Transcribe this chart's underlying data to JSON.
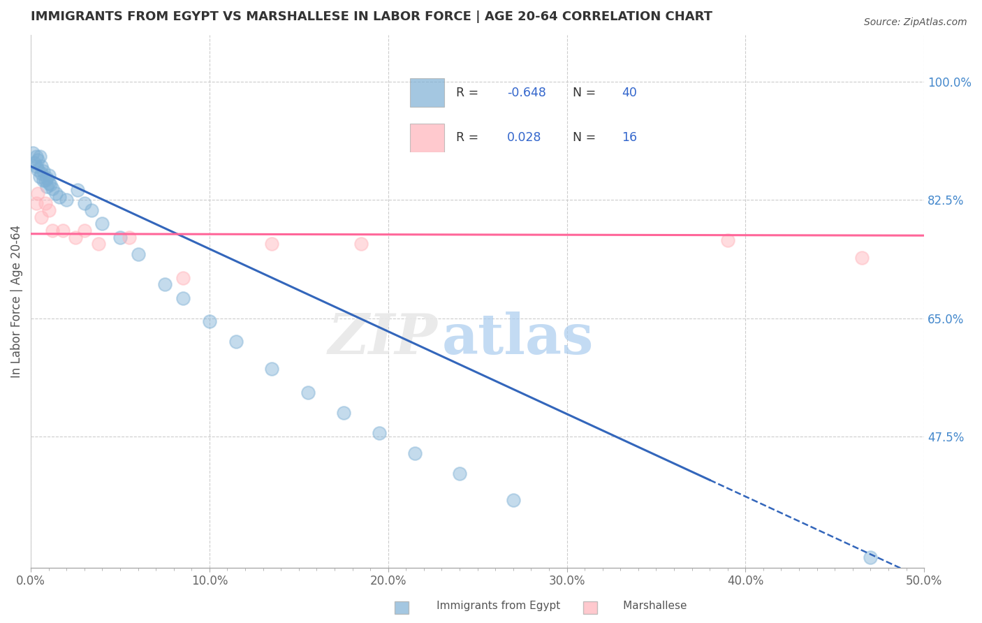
{
  "title": "IMMIGRANTS FROM EGYPT VS MARSHALLESE IN LABOR FORCE | AGE 20-64 CORRELATION CHART",
  "source": "Source: ZipAtlas.com",
  "ylabel": "In Labor Force | Age 20-64",
  "xticklabels": [
    "0.0%",
    "",
    "",
    "",
    "",
    "",
    "",
    "",
    "",
    "",
    "10.0%",
    "",
    "",
    "",
    "",
    "",
    "",
    "",
    "",
    "",
    "20.0%",
    "",
    "",
    "",
    "",
    "",
    "",
    "",
    "",
    "",
    "30.0%",
    "",
    "",
    "",
    "",
    "",
    "",
    "",
    "",
    "",
    "40.0%",
    "",
    "",
    "",
    "",
    "",
    "",
    "",
    "",
    "",
    "50.0%"
  ],
  "xtick_values": [
    0.0,
    0.01,
    0.02,
    0.03,
    0.04,
    0.05,
    0.06,
    0.07,
    0.08,
    0.09,
    0.1,
    0.11,
    0.12,
    0.13,
    0.14,
    0.15,
    0.16,
    0.17,
    0.18,
    0.19,
    0.2,
    0.21,
    0.22,
    0.23,
    0.24,
    0.25,
    0.26,
    0.27,
    0.28,
    0.29,
    0.3,
    0.31,
    0.32,
    0.33,
    0.34,
    0.35,
    0.36,
    0.37,
    0.38,
    0.39,
    0.4,
    0.41,
    0.42,
    0.43,
    0.44,
    0.45,
    0.46,
    0.47,
    0.48,
    0.49,
    0.5
  ],
  "xticklabels_major": [
    "0.0%",
    "10.0%",
    "20.0%",
    "30.0%",
    "40.0%",
    "50.0%"
  ],
  "xtick_values_major": [
    0.0,
    0.1,
    0.2,
    0.3,
    0.4,
    0.5
  ],
  "yticklabels_right": [
    "100.0%",
    "82.5%",
    "65.0%",
    "47.5%"
  ],
  "ytick_values_right": [
    1.0,
    0.825,
    0.65,
    0.475
  ],
  "xlim": [
    0.0,
    0.5
  ],
  "ylim": [
    0.28,
    1.07
  ],
  "legend_egypt_R": "-0.648",
  "legend_egypt_N": "40",
  "legend_marsh_R": "0.028",
  "legend_marsh_N": "16",
  "blue_color": "#7EB0D5",
  "pink_color": "#FFB3BA",
  "trend_blue": "#3366BB",
  "trend_pink": "#FF6699",
  "egypt_x": [
    0.001,
    0.002,
    0.003,
    0.003,
    0.004,
    0.004,
    0.005,
    0.005,
    0.006,
    0.006,
    0.007,
    0.007,
    0.008,
    0.009,
    0.009,
    0.01,
    0.01,
    0.011,
    0.012,
    0.014,
    0.016,
    0.02,
    0.026,
    0.03,
    0.034,
    0.04,
    0.05,
    0.06,
    0.075,
    0.085,
    0.1,
    0.115,
    0.135,
    0.155,
    0.175,
    0.195,
    0.215,
    0.24,
    0.27,
    0.47
  ],
  "egypt_y": [
    0.895,
    0.88,
    0.89,
    0.875,
    0.885,
    0.87,
    0.89,
    0.86,
    0.865,
    0.875,
    0.855,
    0.868,
    0.855,
    0.845,
    0.858,
    0.85,
    0.862,
    0.848,
    0.842,
    0.835,
    0.83,
    0.825,
    0.84,
    0.82,
    0.81,
    0.79,
    0.77,
    0.745,
    0.7,
    0.68,
    0.645,
    0.615,
    0.575,
    0.54,
    0.51,
    0.48,
    0.45,
    0.42,
    0.38,
    0.295
  ],
  "marsh_x": [
    0.003,
    0.004,
    0.006,
    0.008,
    0.01,
    0.012,
    0.018,
    0.025,
    0.03,
    0.038,
    0.055,
    0.085,
    0.135,
    0.185,
    0.39,
    0.465
  ],
  "marsh_y": [
    0.82,
    0.835,
    0.8,
    0.82,
    0.81,
    0.78,
    0.78,
    0.77,
    0.78,
    0.76,
    0.77,
    0.71,
    0.76,
    0.76,
    0.765,
    0.74
  ],
  "blue_trend_start_x": 0.0,
  "blue_trend_end_solid_x": 0.38,
  "blue_trend_end_dash_x": 0.5,
  "pink_trend_start_x": 0.0,
  "pink_trend_end_x": 0.5
}
